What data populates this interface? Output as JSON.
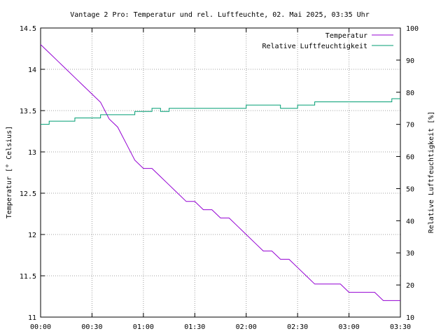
{
  "chart_data": {
    "type": "line",
    "title": "Vantage 2 Pro: Temperatur und rel. Luftfeuchte, 02. Mai 2025, 03:35 Uhr",
    "xlabel": "",
    "ylabel": "Temperatur [° Celsius]",
    "y2label": "Relative Luftfeuchtigkeit [%]",
    "x_tick_labels": [
      "00:00",
      "00:30",
      "01:00",
      "01:30",
      "02:00",
      "02:30",
      "03:00",
      "03:30"
    ],
    "y_tick_labels": [
      "14.5",
      "14",
      "13.5",
      "13",
      "12.5",
      "12",
      "11.5",
      "11"
    ],
    "y2_tick_labels": [
      "100",
      "90",
      "80",
      "70",
      "60",
      "50",
      "40",
      "30",
      "20",
      "10"
    ],
    "xlim": [
      "00:00",
      "03:30"
    ],
    "ylim": [
      11,
      14.5
    ],
    "y2lim": [
      10,
      100
    ],
    "grid": true,
    "legend_position": "top-right",
    "series": [
      {
        "name": "Temperatur",
        "axis": "left",
        "color": "#9400d3",
        "x": [
          "00:00",
          "00:05",
          "00:10",
          "00:15",
          "00:20",
          "00:25",
          "00:30",
          "00:35",
          "00:40",
          "00:45",
          "00:50",
          "00:55",
          "01:00",
          "01:05",
          "01:10",
          "01:15",
          "01:20",
          "01:25",
          "01:30",
          "01:35",
          "01:40",
          "01:45",
          "01:50",
          "01:55",
          "02:00",
          "02:05",
          "02:10",
          "02:15",
          "02:20",
          "02:25",
          "02:30",
          "02:35",
          "02:40",
          "02:45",
          "02:50",
          "02:55",
          "03:00",
          "03:05",
          "03:10",
          "03:15",
          "03:20",
          "03:25",
          "03:30"
        ],
        "values": [
          14.3,
          14.2,
          14.1,
          14.0,
          13.9,
          13.8,
          13.7,
          13.6,
          13.4,
          13.3,
          13.1,
          12.9,
          12.8,
          12.8,
          12.7,
          12.6,
          12.5,
          12.4,
          12.4,
          12.3,
          12.3,
          12.2,
          12.2,
          12.1,
          12.0,
          11.9,
          11.8,
          11.8,
          11.7,
          11.7,
          11.6,
          11.5,
          11.4,
          11.4,
          11.4,
          11.4,
          11.3,
          11.3,
          11.3,
          11.3,
          11.2,
          11.2,
          11.2
        ]
      },
      {
        "name": "Relative Luftfeuchtigkeit",
        "axis": "right",
        "color": "#009e73",
        "x": [
          "00:00",
          "00:05",
          "00:10",
          "00:15",
          "00:20",
          "00:25",
          "00:30",
          "00:35",
          "00:40",
          "00:45",
          "00:50",
          "00:55",
          "01:00",
          "01:05",
          "01:10",
          "01:15",
          "01:20",
          "01:25",
          "01:30",
          "01:35",
          "01:40",
          "01:45",
          "01:50",
          "01:55",
          "02:00",
          "02:05",
          "02:10",
          "02:15",
          "02:20",
          "02:25",
          "02:30",
          "02:35",
          "02:40",
          "02:45",
          "02:50",
          "02:55",
          "03:00",
          "03:05",
          "03:10",
          "03:15",
          "03:20",
          "03:25",
          "03:30"
        ],
        "values": [
          70,
          71,
          71,
          71,
          72,
          72,
          72,
          73,
          73,
          73,
          73,
          74,
          74,
          75,
          74,
          75,
          75,
          75,
          75,
          75,
          75,
          75,
          75,
          75,
          76,
          76,
          76,
          76,
          75,
          75,
          76,
          76,
          77,
          77,
          77,
          77,
          77,
          77,
          77,
          77,
          77,
          78,
          78
        ]
      }
    ]
  }
}
